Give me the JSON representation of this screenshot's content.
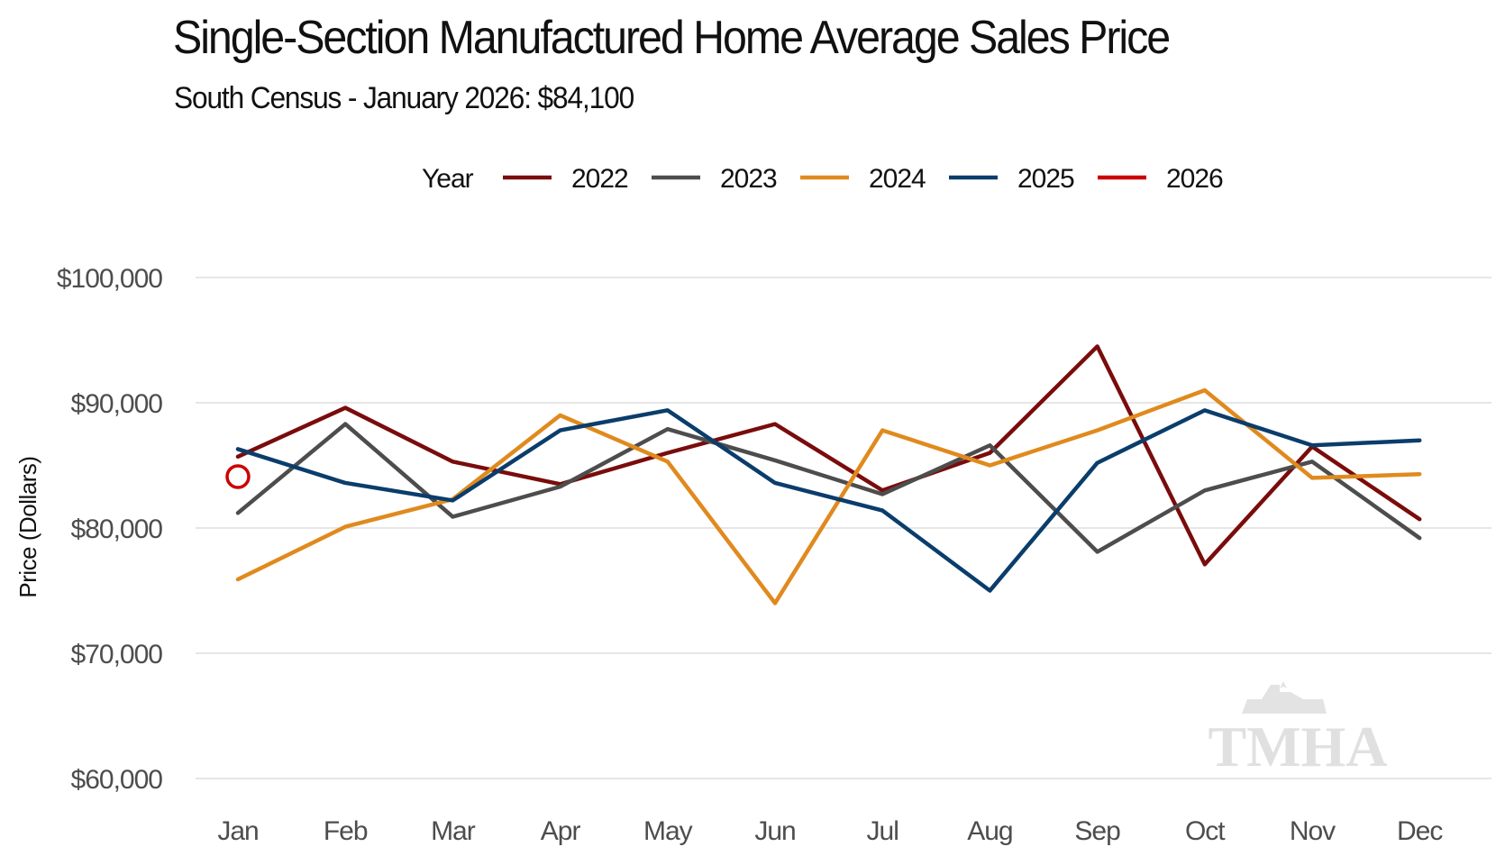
{
  "title": "Single-Section Manufactured Home Average Sales Price",
  "subtitle": "South Census - January 2026: $84,100",
  "watermark": "TMHA",
  "chart_data": {
    "type": "line",
    "xlabel": "",
    "ylabel": "Price (Dollars)",
    "legend_title": "Year",
    "legend_position": "top",
    "grid": true,
    "ylim": [
      58000,
      101000
    ],
    "yticks": [
      60000,
      70000,
      80000,
      90000,
      100000
    ],
    "ytick_labels": [
      "$60,000",
      "$70,000",
      "$80,000",
      "$90,000",
      "$100,000"
    ],
    "categories": [
      "Jan",
      "Feb",
      "Mar",
      "Apr",
      "May",
      "Jun",
      "Jul",
      "Aug",
      "Sep",
      "Oct",
      "Nov",
      "Dec"
    ],
    "series": [
      {
        "name": "2022",
        "color": "#7a0c0c",
        "marker": "none",
        "values": [
          85700,
          89600,
          85300,
          83500,
          86000,
          88300,
          83000,
          86000,
          94500,
          77100,
          86500,
          80700
        ]
      },
      {
        "name": "2023",
        "color": "#4d4d4d",
        "marker": "none",
        "values": [
          81200,
          88300,
          80900,
          83300,
          87900,
          85400,
          82700,
          86600,
          78100,
          83000,
          85300,
          79200
        ]
      },
      {
        "name": "2024",
        "color": "#e08a1e",
        "marker": "none",
        "values": [
          75900,
          80100,
          82300,
          89000,
          85300,
          74000,
          87800,
          85000,
          87800,
          91000,
          84000,
          84300
        ]
      },
      {
        "name": "2025",
        "color": "#0a3d6b",
        "marker": "none",
        "values": [
          86300,
          83600,
          82200,
          87800,
          89400,
          83600,
          81400,
          75000,
          85200,
          89400,
          86600,
          87000
        ]
      },
      {
        "name": "2026",
        "color": "#cc0000",
        "marker": "open-circle",
        "values": [
          84100,
          null,
          null,
          null,
          null,
          null,
          null,
          null,
          null,
          null,
          null,
          null
        ]
      }
    ]
  }
}
